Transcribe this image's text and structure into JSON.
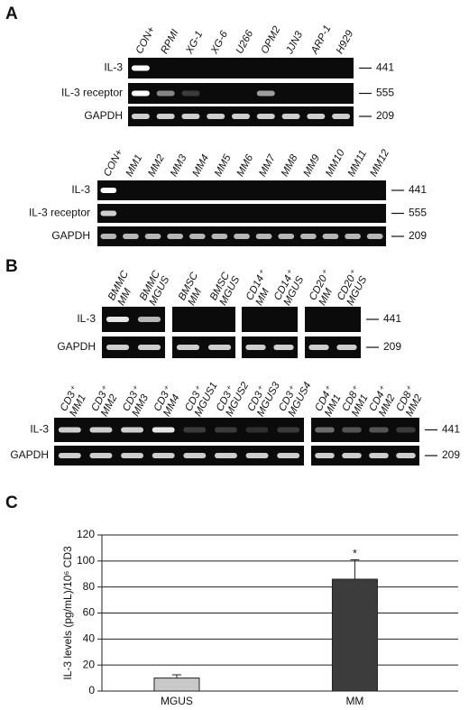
{
  "panel_a": {
    "label": "A",
    "gel1": {
      "lanes": [
        "CON+",
        "RPMI",
        "XG-1",
        "XG-6",
        "U266",
        "OPM2",
        "JJN3",
        "ARP-1",
        "H929"
      ],
      "rows": [
        "IL-3",
        "IL-3 receptor",
        "GAPDH"
      ],
      "sizes": [
        441,
        555,
        209
      ]
    },
    "gel2": {
      "lanes": [
        "CON+",
        "MM1",
        "MM2",
        "MM3",
        "MM4",
        "MM5",
        "MM6",
        "MM7",
        "MM8",
        "MM9",
        "MM10",
        "MM11",
        "MM12"
      ],
      "rows": [
        "IL-3",
        "IL-3 receptor",
        "GAPDH"
      ],
      "sizes": [
        441,
        555,
        209
      ]
    }
  },
  "panel_b": {
    "label": "B",
    "gel1": {
      "lanes": [
        [
          "BMMC",
          "MM"
        ],
        [
          "BMMC",
          "MGUS"
        ],
        [
          "BMSC",
          "MM"
        ],
        [
          "BMSC",
          "MGUS"
        ],
        [
          "CD14⁺",
          "MM"
        ],
        [
          "CD14⁺",
          "MGUS"
        ],
        [
          "CD20⁺",
          "MM"
        ],
        [
          "CD20⁺",
          "MGUS"
        ]
      ],
      "rows": [
        "IL-3",
        "GAPDH"
      ],
      "sizes": [
        441,
        209
      ]
    },
    "gel2": {
      "lanes": [
        [
          "CD3⁺",
          "MM1"
        ],
        [
          "CD3⁺",
          "MM2"
        ],
        [
          "CD3⁺",
          "MM3"
        ],
        [
          "CD3⁺",
          "MM4"
        ],
        [
          "CD3⁺",
          "MGUS1"
        ],
        [
          "CD3⁺",
          "MGUS2"
        ],
        [
          "CD3⁺",
          "MGUS3"
        ],
        [
          "CD3⁺",
          "MGUS4"
        ],
        [
          "CD4⁺",
          "MM1"
        ],
        [
          "CD8⁺",
          "MM1"
        ],
        [
          "CD4⁺",
          "MM2"
        ],
        [
          "CD8⁺",
          "MM2"
        ]
      ],
      "rows": [
        "IL-3",
        "GAPDH"
      ],
      "sizes": [
        441,
        209
      ]
    }
  },
  "chart_data": {
    "type": "bar",
    "panel_label": "C",
    "y_label": "IL-3 levels (pg/mL)/10⁶ CD3",
    "categories": [
      "MGUS",
      "MM"
    ],
    "values": [
      10,
      86
    ],
    "errors": [
      2.5,
      15
    ],
    "colors": [
      "#c8c8c8",
      "#3c3c3c"
    ],
    "annotation": "*",
    "ylim": [
      0,
      120
    ],
    "yticks": [
      0,
      20,
      40,
      60,
      80,
      100,
      120
    ],
    "grid": true
  }
}
